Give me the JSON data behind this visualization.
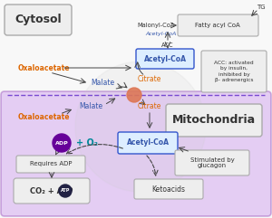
{
  "bg_color": "#f8f8f8",
  "mito_face": "#cc99ee",
  "mito_edge": "#9955bb",
  "mito_alpha": 0.45,
  "dashed_color": "#6633cc",
  "cytosol_label": "Cytosol",
  "mito_label": "Mitochondria",
  "acetylcoa_label": "Acetyl-CoA",
  "acetylcoa_mito_label": "Acetyl-CoA",
  "oxaloacetate_label": "Oxaloacetate",
  "malate_label": "Malate",
  "citrate_label": "Citrate",
  "malonyl_label": "Malonyl-CoA",
  "acetylcoa_small": "Acetyl-CoA",
  "acc_label": "ACC",
  "fatty_label": "Fatty acyl CoA",
  "tg_label": "TG",
  "acc_note": "ACC: activated\nby insulin,\ninhibited by\nβ- adrenergics",
  "requires_label": "Requires ADP",
  "co2atp_label": "CO₂ + ATP",
  "ketoacids_label": "Ketoacids",
  "stimulated_label": "Stimulated by\nglucagon",
  "adp_label": "ADP",
  "o2_label": "O₂",
  "orange": "#dd6600",
  "blue": "#3355aa",
  "teal": "#008899",
  "dark": "#333333",
  "purple": "#660099",
  "arrow_color": "#444444",
  "box_face": "#eeeeee",
  "box_edge": "#aaaaaa",
  "acetyl_face": "#ddeeff",
  "acetyl_edge": "#3355cc",
  "junction_color": "#dd7755"
}
